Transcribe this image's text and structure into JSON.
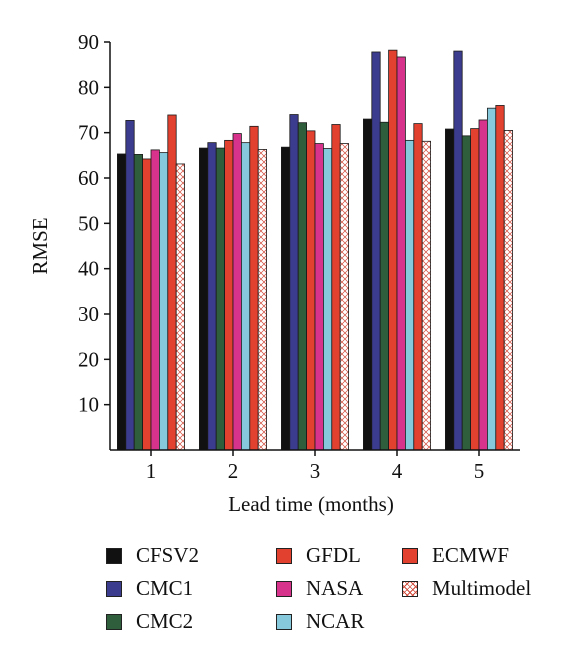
{
  "chart_data": {
    "type": "bar",
    "xlabel": "Lead time (months)",
    "ylabel": "RMSE",
    "ylim": [
      0,
      90
    ],
    "yticks": [
      10,
      20,
      30,
      40,
      50,
      60,
      70,
      80,
      90
    ],
    "categories": [
      "1",
      "2",
      "3",
      "4",
      "5"
    ],
    "grid": false,
    "legend_position": "bottom",
    "series": [
      {
        "name": "CFSV2",
        "color": "#111111",
        "pattern": "solid",
        "values": [
          65.3,
          66.6,
          66.8,
          73.0,
          70.8
        ]
      },
      {
        "name": "CMC1",
        "color": "#3c3c8e",
        "pattern": "solid",
        "values": [
          72.7,
          67.8,
          74.0,
          87.8,
          88.0
        ]
      },
      {
        "name": "CMC2",
        "color": "#2e5e3c",
        "pattern": "solid",
        "values": [
          65.2,
          66.6,
          72.2,
          72.3,
          69.3
        ]
      },
      {
        "name": "GFDL",
        "color": "#e2412f",
        "pattern": "solid",
        "values": [
          64.2,
          68.3,
          70.4,
          88.2,
          70.9
        ]
      },
      {
        "name": "NASA",
        "color": "#d8338c",
        "pattern": "solid",
        "values": [
          66.2,
          69.8,
          67.6,
          86.7,
          72.8
        ]
      },
      {
        "name": "NCAR",
        "color": "#86c8dc",
        "pattern": "solid",
        "values": [
          65.6,
          67.8,
          66.5,
          68.3,
          75.4
        ]
      },
      {
        "name": "ECMWF",
        "color": "#e2412f",
        "pattern": "solid",
        "values": [
          73.9,
          71.4,
          71.8,
          72.0,
          76.0
        ]
      },
      {
        "name": "Multimodel",
        "color": "#d24a3a",
        "pattern": "crosshatch",
        "values": [
          63.1,
          66.3,
          67.6,
          68.1,
          70.5
        ]
      }
    ]
  }
}
